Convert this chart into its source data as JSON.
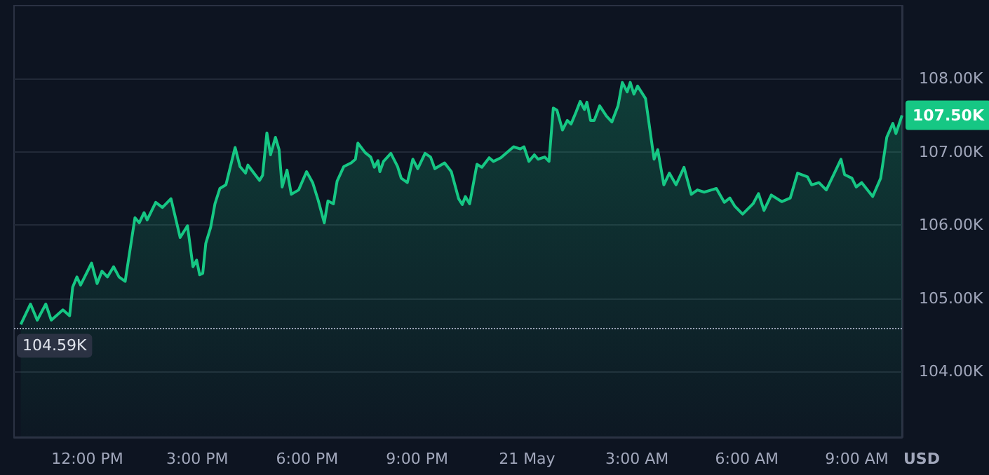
{
  "chart_data": {
    "type": "area",
    "ylabel": "USD",
    "grid": "y",
    "marker": "none",
    "line_style": "solid",
    "xlim": [
      "--05-20T10:00",
      "--05-21T10:14"
    ],
    "ylim": [
      103.1,
      109
    ],
    "xticks": [
      {
        "value": "--05-20T12:00",
        "label": "12:00 PM"
      },
      {
        "value": "--05-20T15:00",
        "label": "3:00 PM"
      },
      {
        "value": "--05-20T18:00",
        "label": "6:00 PM"
      },
      {
        "value": "--05-20T21:00",
        "label": "9:00 PM"
      },
      {
        "value": "--05-21T00:00",
        "label": "21 May"
      },
      {
        "value": "--05-21T03:00",
        "label": "3:00 AM"
      },
      {
        "value": "--05-21T06:00",
        "label": "6:00 AM"
      },
      {
        "value": "--05-21T09:00",
        "label": "9:00 AM"
      }
    ],
    "yticks": [
      {
        "value": 104,
        "label": "104.00K"
      },
      {
        "value": 105,
        "label": "105.00K"
      },
      {
        "value": 106,
        "label": "106.00K"
      },
      {
        "value": 107,
        "label": "107.00K"
      },
      {
        "value": 108,
        "label": "108.00K"
      }
    ],
    "ref_lines": [
      {
        "axis": "y",
        "value": 104.59,
        "label": "104.59K",
        "color": "#9aa3b5",
        "line_style": "dotted"
      }
    ],
    "annotations": [
      {
        "text": "107.50K",
        "x": "--05-21T10:14",
        "y": 107.5
      }
    ],
    "series": [
      {
        "color": "#16c784",
        "x": [
          "--05-20T10:11",
          "--05-20T10:27",
          "--05-20T10:38",
          "--05-20T10:52",
          "--05-20T11:01",
          "--05-20T11:20",
          "--05-20T11:31",
          "--05-20T11:36",
          "--05-20T11:43",
          "--05-20T11:49",
          "--05-20T12:07",
          "--05-20T12:16",
          "--05-20T12:24",
          "--05-20T12:33",
          "--05-20T12:43",
          "--05-20T12:52",
          "--05-20T13:02",
          "--05-20T13:18",
          "--05-20T13:25",
          "--05-20T13:33",
          "--05-20T13:38",
          "--05-20T13:52",
          "--05-20T14:03",
          "--05-20T14:17",
          "--05-20T14:32",
          "--05-20T14:44",
          "--05-20T14:53",
          "--05-20T14:59",
          "--05-20T15:04",
          "--05-20T15:09",
          "--05-20T15:14",
          "--05-20T15:22",
          "--05-20T15:29",
          "--05-20T15:37",
          "--05-20T15:47",
          "--05-20T16:02",
          "--05-20T16:10",
          "--05-20T16:19",
          "--05-20T16:23",
          "--05-20T16:31",
          "--05-20T16:42",
          "--05-20T16:47",
          "--05-20T16:54",
          "--05-20T17:00",
          "--05-20T17:08",
          "--05-20T17:14",
          "--05-20T17:19",
          "--05-20T17:27",
          "--05-20T17:34",
          "--05-20T17:46",
          "--05-20T17:59",
          "--05-20T18:09",
          "--05-20T18:18",
          "--05-20T18:28",
          "--05-20T18:34",
          "--05-20T18:43",
          "--05-20T18:49",
          "--05-20T19:00",
          "--05-20T19:12",
          "--05-20T19:19",
          "--05-20T19:23",
          "--05-20T19:35",
          "--05-20T19:44",
          "--05-20T19:50",
          "--05-20T19:56",
          "--05-20T19:59",
          "--05-20T20:05",
          "--05-20T20:17",
          "--05-20T20:28",
          "--05-20T20:34",
          "--05-20T20:44",
          "--05-20T20:53",
          "--05-20T21:01",
          "--05-20T21:13",
          "--05-20T21:22",
          "--05-20T21:29",
          "--05-20T21:45",
          "--05-20T21:56",
          "--05-20T22:08",
          "--05-20T22:14",
          "--05-20T22:19",
          "--05-20T22:26",
          "--05-20T22:38",
          "--05-20T22:46",
          "--05-20T22:58",
          "--05-20T23:05",
          "--05-20T23:17",
          "--05-20T23:38",
          "--05-20T23:49",
          "--05-20T23:55",
          "--05-21T00:03",
          "--05-21T00:12",
          "--05-21T00:18",
          "--05-21T00:29",
          "--05-21T00:36",
          "--05-21T00:43",
          "--05-21T00:49",
          "--05-21T00:58",
          "--05-21T01:06",
          "--05-21T01:12",
          "--05-21T01:20",
          "--05-21T01:27",
          "--05-21T01:34",
          "--05-21T01:38",
          "--05-21T01:44",
          "--05-21T01:50",
          "--05-21T01:59",
          "--05-21T02:10",
          "--05-21T02:19",
          "--05-21T02:29",
          "--05-21T02:36",
          "--05-21T02:44",
          "--05-21T02:49",
          "--05-21T02:55",
          "--05-21T03:01",
          "--05-21T03:14",
          "--05-21T03:28",
          "--05-21T03:34",
          "--05-21T03:44",
          "--05-21T03:53",
          "--05-21T04:04",
          "--05-21T04:17",
          "--05-21T04:29",
          "--05-21T04:39",
          "--05-21T04:50",
          "--05-21T05:10",
          "--05-21T05:23",
          "--05-21T05:32",
          "--05-21T05:40",
          "--05-21T05:53",
          "--05-21T06:10",
          "--05-21T06:19",
          "--05-21T06:28",
          "--05-21T06:40",
          "--05-21T06:57",
          "--05-21T07:11",
          "--05-21T07:23",
          "--05-21T07:39",
          "--05-21T07:46",
          "--05-21T07:58",
          "--05-21T08:10",
          "--05-21T08:25",
          "--05-21T08:34",
          "--05-21T08:40",
          "--05-21T08:52",
          "--05-21T08:59",
          "--05-21T09:08",
          "--05-21T09:26",
          "--05-21T09:39",
          "--05-21T09:49",
          "--05-21T09:59",
          "--05-21T10:04",
          "--05-21T10:14"
        ],
        "values": [
          104.64,
          104.92,
          104.7,
          104.92,
          104.7,
          104.84,
          104.76,
          105.15,
          105.29,
          105.18,
          105.48,
          105.2,
          105.37,
          105.29,
          105.43,
          105.29,
          105.23,
          106.1,
          106.03,
          106.17,
          106.07,
          106.31,
          106.24,
          106.36,
          105.83,
          105.99,
          105.43,
          105.52,
          105.32,
          105.34,
          105.75,
          105.97,
          106.29,
          106.5,
          106.55,
          107.06,
          106.8,
          106.71,
          106.82,
          106.73,
          106.61,
          106.68,
          107.26,
          106.96,
          107.2,
          107.03,
          106.52,
          106.75,
          106.42,
          106.48,
          106.73,
          106.58,
          106.34,
          106.03,
          106.33,
          106.29,
          106.6,
          106.8,
          106.85,
          106.9,
          107.12,
          106.99,
          106.93,
          106.79,
          106.88,
          106.73,
          106.87,
          106.98,
          106.8,
          106.64,
          106.58,
          106.9,
          106.77,
          106.98,
          106.93,
          106.77,
          106.85,
          106.73,
          106.36,
          106.28,
          106.39,
          106.29,
          106.83,
          106.79,
          106.92,
          106.87,
          106.92,
          107.07,
          107.04,
          107.07,
          106.87,
          106.96,
          106.9,
          106.93,
          106.87,
          107.6,
          107.57,
          107.3,
          107.43,
          107.38,
          107.54,
          107.69,
          107.58,
          107.68,
          107.43,
          107.43,
          107.63,
          107.49,
          107.41,
          107.63,
          107.95,
          107.82,
          107.95,
          107.79,
          107.9,
          107.73,
          106.9,
          107.03,
          106.55,
          106.71,
          106.55,
          106.79,
          106.42,
          106.48,
          106.45,
          106.5,
          106.31,
          106.37,
          106.26,
          106.15,
          106.29,
          106.43,
          106.2,
          106.41,
          106.32,
          106.37,
          106.71,
          106.66,
          106.55,
          106.58,
          106.48,
          106.74,
          106.9,
          106.69,
          106.64,
          106.52,
          106.58,
          106.39,
          106.64,
          107.2,
          107.39,
          107.25,
          107.5
        ]
      }
    ]
  }
}
